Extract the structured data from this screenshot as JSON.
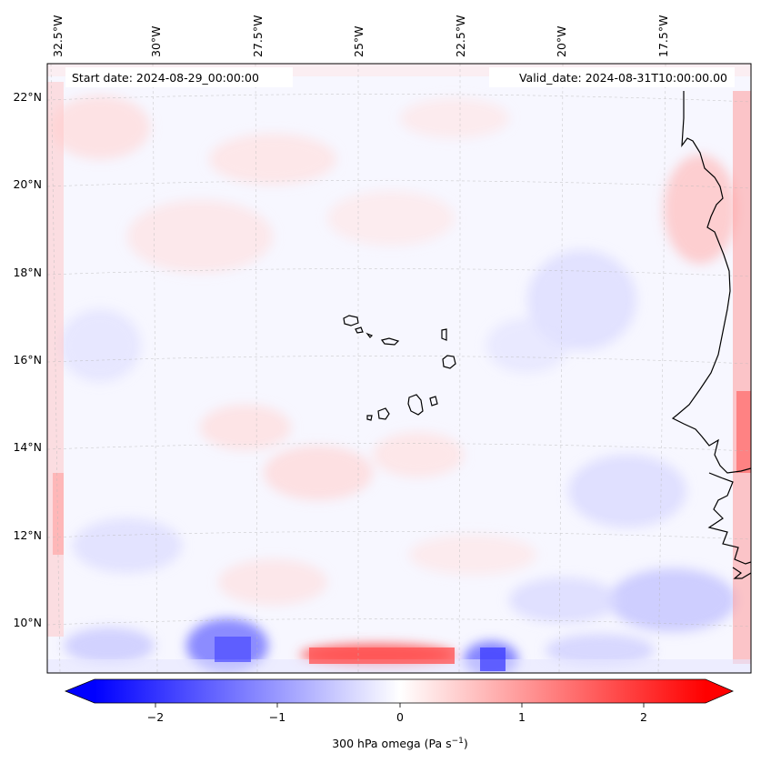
{
  "map": {
    "start_date": "Start date: 2024-08-29_00:00:00",
    "valid_date": "Valid_date: 2024-08-31T10:00:00.00",
    "lon_labels": [
      "32.5°W",
      "30°W",
      "27.5°W",
      "25°W",
      "22.5°W",
      "20°W",
      "17.5°W"
    ],
    "lon_values": [
      -32.5,
      -30,
      -27.5,
      -25,
      -22.5,
      -20,
      -17.5
    ],
    "lat_labels": [
      "22°N",
      "20°N",
      "18°N",
      "16°N",
      "14°N",
      "12°N",
      "10°N"
    ],
    "lat_values": [
      22,
      20,
      18,
      16,
      14,
      12,
      10
    ],
    "gridlines": true
  },
  "colorbar": {
    "label_prefix": "300 hPa omega (Pa s",
    "label_exp": "−1",
    "label_suffix": ")",
    "ticks": [
      "−2",
      "−1",
      "0",
      "1",
      "2"
    ],
    "tick_values": [
      -2,
      -1,
      0,
      1,
      2
    ],
    "range": [
      -2.5,
      2.5
    ],
    "colors": {
      "low": "#0000ff",
      "mid": "#ffffff",
      "high": "#ff0000"
    },
    "extend": "both"
  }
}
